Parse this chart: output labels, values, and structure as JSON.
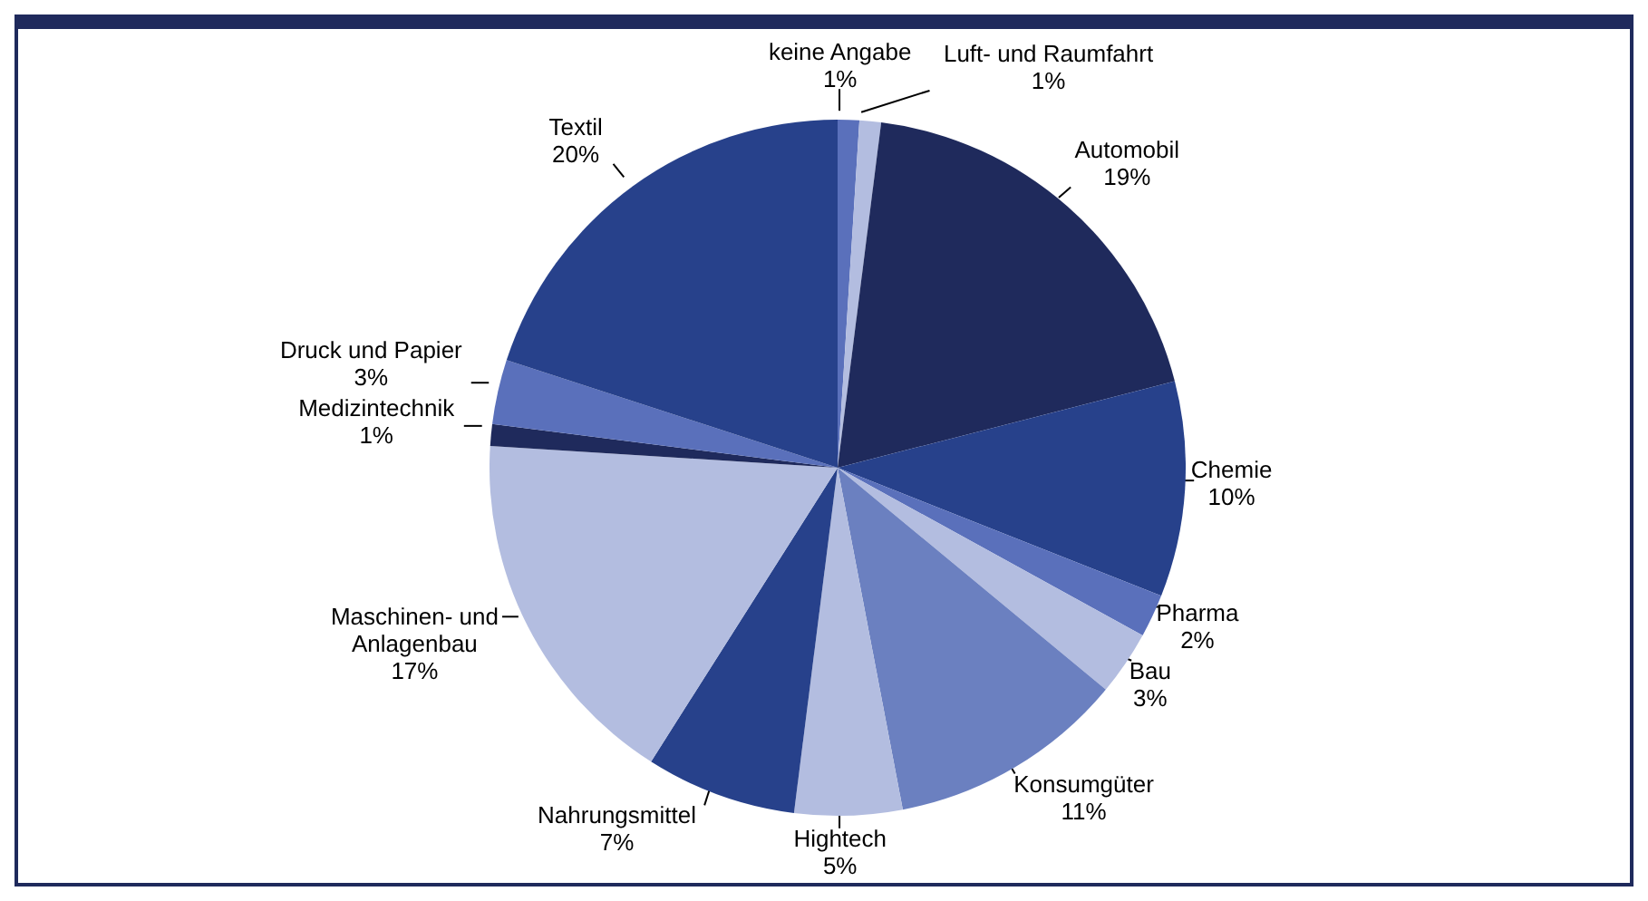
{
  "chart_data": {
    "type": "pie",
    "categories": [
      "keine Angabe",
      "Luft- und Raumfahrt",
      "Automobil",
      "Chemie",
      "Pharma",
      "Bau",
      "Konsumgüter",
      "Hightech",
      "Nahrungsmittel",
      "Maschinen- und Anlagenbau",
      "Medizintechnik",
      "Druck und Papier",
      "Textil"
    ],
    "values": [
      1,
      1,
      19,
      10,
      2,
      3,
      11,
      5,
      7,
      17,
      1,
      3,
      20
    ],
    "value_labels": [
      "1%",
      "1%",
      "19%",
      "10%",
      "2%",
      "3%",
      "11%",
      "5%",
      "7%",
      "17%",
      "1%",
      "3%",
      "20%"
    ],
    "colors": [
      "#5a70bb",
      "#b3bde0",
      "#1f2a5c",
      "#27418b",
      "#5a70bb",
      "#b3bde0",
      "#6b80c0",
      "#b3bde0",
      "#27418b",
      "#b3bde0",
      "#1f2a5c",
      "#5a70bb",
      "#27418b"
    ],
    "legend": false
  }
}
